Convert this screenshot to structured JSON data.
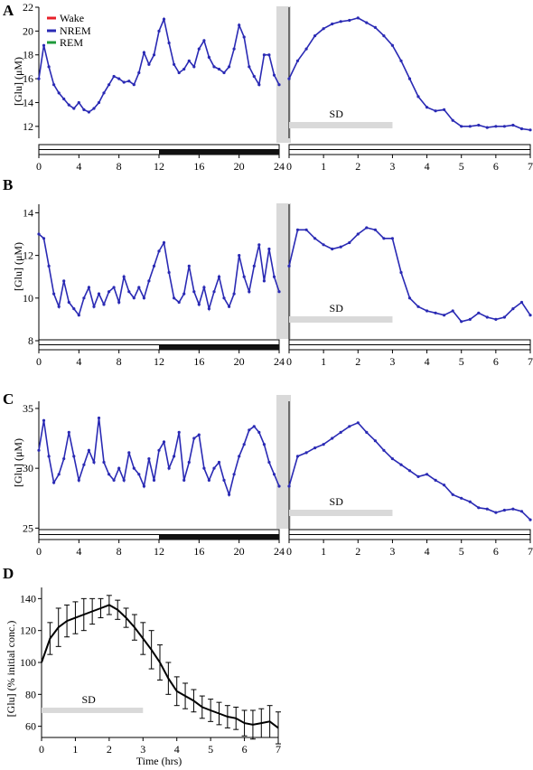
{
  "legend": [
    {
      "label": "Wake",
      "color": "#e8202a"
    },
    {
      "label": "NREM",
      "color": "#2a2ab4"
    },
    {
      "label": "REM",
      "color": "#1e9a3a"
    }
  ],
  "sd_label": "SD",
  "colors": {
    "wake": "#e8202a",
    "nrem": "#2a2ab4",
    "rem": "#1e9a3a",
    "sd_bar": "#d9d9d9",
    "dark_phase": "#111111"
  },
  "chart_data": [
    {
      "panel": "A",
      "type": "line",
      "ylabel": "[Glu] (μM)",
      "ylim": [
        11,
        22
      ],
      "yticks": [
        12,
        14,
        16,
        18,
        20,
        22
      ],
      "left": {
        "xlim": [
          0,
          24
        ],
        "xticks": [
          0,
          4,
          8,
          12,
          16,
          20,
          24
        ],
        "dark_period": [
          12,
          24
        ],
        "x": [
          0,
          0.5,
          1,
          1.5,
          2,
          2.5,
          3,
          3.5,
          4,
          4.5,
          5,
          5.5,
          6,
          6.5,
          7,
          7.5,
          8,
          8.5,
          9,
          9.5,
          10,
          10.5,
          11,
          11.5,
          12,
          12.5,
          13,
          13.5,
          14,
          14.5,
          15,
          15.5,
          16,
          16.5,
          17,
          17.5,
          18,
          18.5,
          19,
          19.5,
          20,
          20.5,
          21,
          21.5,
          22,
          22.5,
          23,
          23.5,
          24
        ],
        "y": [
          16.0,
          18.8,
          17.0,
          15.5,
          14.8,
          14.3,
          13.8,
          13.5,
          14.0,
          13.4,
          13.2,
          13.5,
          14.0,
          14.8,
          15.5,
          16.2,
          16.0,
          15.7,
          15.8,
          15.5,
          16.5,
          18.2,
          17.2,
          18.0,
          20.0,
          21.0,
          19.0,
          17.2,
          16.5,
          16.8,
          17.5,
          17.0,
          18.5,
          19.2,
          17.8,
          17.0,
          16.8,
          16.5,
          17.0,
          18.5,
          20.5,
          19.5,
          17.0,
          16.2,
          15.5,
          18.0,
          18.0,
          16.3,
          15.5
        ]
      },
      "right": {
        "xlim": [
          0,
          7
        ],
        "xticks": [
          0,
          1,
          2,
          3,
          4,
          5,
          6,
          7
        ],
        "sd_period": [
          0,
          3
        ],
        "x": [
          0,
          0.25,
          0.5,
          0.75,
          1,
          1.25,
          1.5,
          1.75,
          2,
          2.25,
          2.5,
          2.75,
          3,
          3.25,
          3.5,
          3.75,
          4,
          4.25,
          4.5,
          4.75,
          5,
          5.25,
          5.5,
          5.75,
          6,
          6.25,
          6.5,
          6.75,
          7
        ],
        "y": [
          16.0,
          17.5,
          18.5,
          19.6,
          20.2,
          20.6,
          20.8,
          20.9,
          21.1,
          20.7,
          20.3,
          19.6,
          18.8,
          17.5,
          16.0,
          14.5,
          13.6,
          13.3,
          13.4,
          12.5,
          12.0,
          12.0,
          12.1,
          11.9,
          12.0,
          12.0,
          12.1,
          11.8,
          11.7
        ]
      }
    },
    {
      "panel": "B",
      "type": "line",
      "ylabel": "[Glu] (μM)",
      "ylim": [
        8,
        14.4
      ],
      "yticks": [
        8,
        10,
        12,
        14
      ],
      "left": {
        "xlim": [
          0,
          24
        ],
        "xticks": [
          0,
          4,
          8,
          12,
          16,
          20,
          24
        ],
        "dark_period": [
          12,
          24
        ],
        "x": [
          0,
          0.5,
          1,
          1.5,
          2,
          2.5,
          3,
          3.5,
          4,
          4.5,
          5,
          5.5,
          6,
          6.5,
          7,
          7.5,
          8,
          8.5,
          9,
          9.5,
          10,
          10.5,
          11,
          11.5,
          12,
          12.5,
          13,
          13.5,
          14,
          14.5,
          15,
          15.5,
          16,
          16.5,
          17,
          17.5,
          18,
          18.5,
          19,
          19.5,
          20,
          20.5,
          21,
          21.5,
          22,
          22.5,
          23,
          23.5,
          24
        ],
        "y": [
          13.0,
          12.8,
          11.5,
          10.2,
          9.6,
          10.8,
          9.8,
          9.5,
          9.2,
          10.0,
          10.5,
          9.6,
          10.2,
          9.7,
          10.3,
          10.5,
          9.8,
          11.0,
          10.3,
          10.0,
          10.5,
          10.0,
          10.8,
          11.5,
          12.2,
          12.6,
          11.2,
          10.0,
          9.8,
          10.2,
          11.5,
          10.3,
          9.7,
          10.5,
          9.5,
          10.3,
          11.0,
          10.0,
          9.6,
          10.2,
          12.0,
          11.0,
          10.3,
          11.5,
          12.5,
          10.8,
          12.3,
          11.0,
          10.3
        ]
      },
      "right": {
        "xlim": [
          0,
          7
        ],
        "xticks": [
          0,
          1,
          2,
          3,
          4,
          5,
          6,
          7
        ],
        "sd_period": [
          0,
          3
        ],
        "x": [
          0,
          0.25,
          0.5,
          0.75,
          1,
          1.25,
          1.5,
          1.75,
          2,
          2.25,
          2.5,
          2.75,
          3,
          3.25,
          3.5,
          3.75,
          4,
          4.25,
          4.5,
          4.75,
          5,
          5.25,
          5.5,
          5.75,
          6,
          6.25,
          6.5,
          6.75,
          7
        ],
        "y": [
          11.5,
          13.2,
          13.2,
          12.8,
          12.5,
          12.3,
          12.4,
          12.6,
          13.0,
          13.3,
          13.2,
          12.8,
          12.8,
          11.2,
          10.0,
          9.6,
          9.4,
          9.3,
          9.2,
          9.4,
          8.9,
          9.0,
          9.3,
          9.1,
          9.0,
          9.1,
          9.5,
          9.8,
          9.2
        ]
      }
    },
    {
      "panel": "C",
      "type": "line",
      "ylabel": "[Glu] (μM)",
      "ylim": [
        24.8,
        35.6
      ],
      "yticks": [
        25,
        30,
        35
      ],
      "left": {
        "xlim": [
          0,
          24
        ],
        "xticks": [
          0,
          4,
          8,
          12,
          16,
          20,
          24
        ],
        "dark_period": [
          12,
          24
        ],
        "x": [
          0,
          0.5,
          1,
          1.5,
          2,
          2.5,
          3,
          3.5,
          4,
          4.5,
          5,
          5.5,
          6,
          6.5,
          7,
          7.5,
          8,
          8.5,
          9,
          9.5,
          10,
          10.5,
          11,
          11.5,
          12,
          12.5,
          13,
          13.5,
          14,
          14.5,
          15,
          15.5,
          16,
          16.5,
          17,
          17.5,
          18,
          18.5,
          19,
          19.5,
          20,
          20.5,
          21,
          21.5,
          22,
          22.5,
          23,
          23.5,
          24
        ],
        "y": [
          31.5,
          34.0,
          31.0,
          28.8,
          29.5,
          30.8,
          33.0,
          31.0,
          29.0,
          30.3,
          31.5,
          30.5,
          34.2,
          30.5,
          29.5,
          29.0,
          30.0,
          29.0,
          31.3,
          30.0,
          29.5,
          28.5,
          30.8,
          29.0,
          31.5,
          32.2,
          30.0,
          31.0,
          33.0,
          29.0,
          30.5,
          32.5,
          32.8,
          30.0,
          29.0,
          30.0,
          30.5,
          29.0,
          27.8,
          29.5,
          31.0,
          32.0,
          33.2,
          33.5,
          33.0,
          32.0,
          30.5,
          29.5,
          28.5
        ]
      },
      "right": {
        "xlim": [
          0,
          7
        ],
        "xticks": [
          0,
          1,
          2,
          3,
          4,
          5,
          6,
          7
        ],
        "sd_period": [
          0,
          3
        ],
        "x": [
          0,
          0.25,
          0.5,
          0.75,
          1,
          1.25,
          1.5,
          1.75,
          2,
          2.25,
          2.5,
          2.75,
          3,
          3.25,
          3.5,
          3.75,
          4,
          4.25,
          4.5,
          4.75,
          5,
          5.25,
          5.5,
          5.75,
          6,
          6.25,
          6.5,
          6.75,
          7
        ],
        "y": [
          28.5,
          31.0,
          31.3,
          31.7,
          32.0,
          32.5,
          33.0,
          33.5,
          33.8,
          33.0,
          32.3,
          31.5,
          30.8,
          30.3,
          29.8,
          29.3,
          29.5,
          29.0,
          28.6,
          27.8,
          27.5,
          27.2,
          26.7,
          26.6,
          26.3,
          26.5,
          26.6,
          26.4,
          25.7
        ]
      }
    },
    {
      "panel": "D",
      "type": "line",
      "ylabel": "[Glu] (% initial conc.)",
      "xlabel": "Time (hrs)",
      "ylim": [
        53,
        147
      ],
      "yticks": [
        60,
        80,
        100,
        120,
        140
      ],
      "xlim": [
        0,
        7
      ],
      "xticks": [
        0,
        1,
        2,
        3,
        4,
        5,
        6,
        7
      ],
      "sd_period": [
        0,
        3
      ],
      "x": [
        0,
        0.25,
        0.5,
        0.75,
        1,
        1.25,
        1.5,
        1.75,
        2,
        2.25,
        2.5,
        2.75,
        3,
        3.25,
        3.5,
        3.75,
        4,
        4.25,
        4.5,
        4.75,
        5,
        5.25,
        5.5,
        5.75,
        6,
        6.25,
        6.5,
        6.75,
        7
      ],
      "mean": [
        100,
        115,
        122,
        126,
        128,
        130,
        132,
        134,
        136,
        133,
        128,
        122,
        115,
        108,
        100,
        90,
        82,
        79,
        76,
        72,
        70,
        68,
        66,
        65,
        62,
        61,
        62,
        63,
        59
      ],
      "error": [
        6,
        10,
        12,
        10,
        10,
        10,
        8,
        6,
        6,
        6,
        6,
        8,
        10,
        12,
        11,
        10,
        9,
        8,
        7,
        7,
        7,
        7,
        7,
        7,
        8,
        9,
        9,
        10,
        10
      ]
    }
  ]
}
